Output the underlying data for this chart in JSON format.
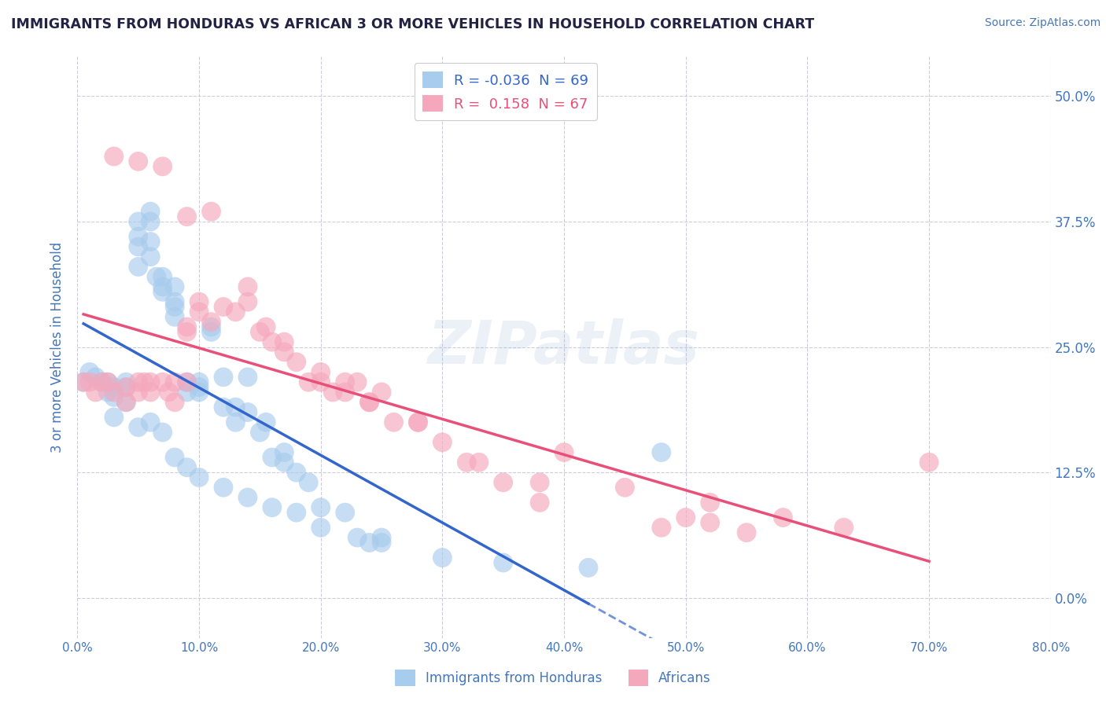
{
  "title": "IMMIGRANTS FROM HONDURAS VS AFRICAN 3 OR MORE VEHICLES IN HOUSEHOLD CORRELATION CHART",
  "source": "Source: ZipAtlas.com",
  "xlim": [
    0.0,
    0.8
  ],
  "ylim": [
    -0.04,
    0.54
  ],
  "ylabel": "3 or more Vehicles in Household",
  "legend_label1": "Immigrants from Honduras",
  "legend_label2": "Africans",
  "R1": -0.036,
  "N1": 69,
  "R2": 0.158,
  "N2": 67,
  "color_blue": "#A8CCED",
  "color_pink": "#F5A8BC",
  "line_color_blue": "#3366CC",
  "line_color_pink": "#E8507A",
  "background_color": "#FFFFFF",
  "grid_color": "#CCCCDD",
  "title_color": "#222244",
  "axis_label_color": "#4477BB",
  "watermark": "ZIPatlas",
  "blue_x": [
    0.005,
    0.01,
    0.015,
    0.02,
    0.025,
    0.025,
    0.03,
    0.03,
    0.03,
    0.04,
    0.04,
    0.04,
    0.05,
    0.05,
    0.05,
    0.05,
    0.06,
    0.06,
    0.06,
    0.06,
    0.065,
    0.07,
    0.07,
    0.07,
    0.08,
    0.08,
    0.08,
    0.08,
    0.09,
    0.09,
    0.1,
    0.1,
    0.1,
    0.11,
    0.11,
    0.12,
    0.12,
    0.13,
    0.13,
    0.14,
    0.14,
    0.15,
    0.155,
    0.16,
    0.17,
    0.17,
    0.18,
    0.19,
    0.2,
    0.22,
    0.23,
    0.24,
    0.25,
    0.05,
    0.06,
    0.07,
    0.08,
    0.09,
    0.1,
    0.12,
    0.14,
    0.16,
    0.18,
    0.2,
    0.25,
    0.3,
    0.35,
    0.42,
    0.48
  ],
  "blue_y": [
    0.215,
    0.225,
    0.22,
    0.215,
    0.205,
    0.215,
    0.21,
    0.2,
    0.18,
    0.215,
    0.195,
    0.21,
    0.375,
    0.36,
    0.35,
    0.33,
    0.385,
    0.375,
    0.355,
    0.34,
    0.32,
    0.31,
    0.32,
    0.305,
    0.29,
    0.31,
    0.295,
    0.28,
    0.205,
    0.215,
    0.21,
    0.215,
    0.205,
    0.27,
    0.265,
    0.22,
    0.19,
    0.175,
    0.19,
    0.22,
    0.185,
    0.165,
    0.175,
    0.14,
    0.145,
    0.135,
    0.125,
    0.115,
    0.09,
    0.085,
    0.06,
    0.055,
    0.06,
    0.17,
    0.175,
    0.165,
    0.14,
    0.13,
    0.12,
    0.11,
    0.1,
    0.09,
    0.085,
    0.07,
    0.055,
    0.04,
    0.035,
    0.03,
    0.145
  ],
  "pink_x": [
    0.005,
    0.01,
    0.015,
    0.02,
    0.025,
    0.03,
    0.04,
    0.04,
    0.05,
    0.05,
    0.055,
    0.06,
    0.06,
    0.07,
    0.075,
    0.08,
    0.08,
    0.09,
    0.09,
    0.09,
    0.1,
    0.1,
    0.11,
    0.12,
    0.13,
    0.14,
    0.15,
    0.155,
    0.16,
    0.17,
    0.18,
    0.19,
    0.2,
    0.21,
    0.22,
    0.22,
    0.23,
    0.24,
    0.25,
    0.26,
    0.28,
    0.3,
    0.32,
    0.35,
    0.38,
    0.4,
    0.48,
    0.5,
    0.52,
    0.55,
    0.03,
    0.05,
    0.07,
    0.09,
    0.11,
    0.14,
    0.17,
    0.2,
    0.24,
    0.28,
    0.33,
    0.38,
    0.45,
    0.52,
    0.58,
    0.63,
    0.7
  ],
  "pink_y": [
    0.215,
    0.215,
    0.205,
    0.215,
    0.215,
    0.205,
    0.21,
    0.195,
    0.215,
    0.205,
    0.215,
    0.215,
    0.205,
    0.215,
    0.205,
    0.215,
    0.195,
    0.215,
    0.27,
    0.265,
    0.295,
    0.285,
    0.275,
    0.29,
    0.285,
    0.295,
    0.265,
    0.27,
    0.255,
    0.245,
    0.235,
    0.215,
    0.225,
    0.205,
    0.215,
    0.205,
    0.215,
    0.195,
    0.205,
    0.175,
    0.175,
    0.155,
    0.135,
    0.115,
    0.095,
    0.145,
    0.07,
    0.08,
    0.075,
    0.065,
    0.44,
    0.435,
    0.43,
    0.38,
    0.385,
    0.31,
    0.255,
    0.215,
    0.195,
    0.175,
    0.135,
    0.115,
    0.11,
    0.095,
    0.08,
    0.07,
    0.135
  ]
}
